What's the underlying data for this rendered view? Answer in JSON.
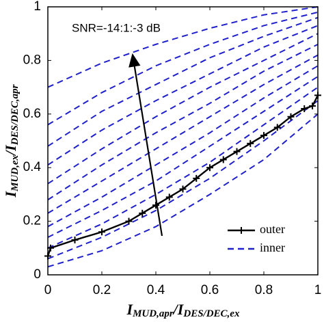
{
  "chart_data": {
    "type": "line",
    "annotation": "SNR=-14:1:-3 dB",
    "xlabel": [
      "I",
      "MUD,apr",
      "/I",
      "DES/DEC,ex"
    ],
    "ylabel": [
      "I",
      "MUD,ex",
      "/I",
      "DES/DEC,apr"
    ],
    "xlim": [
      0,
      1
    ],
    "ylim": [
      0,
      1
    ],
    "xticks": [
      0,
      0.2,
      0.4,
      0.6,
      0.8,
      1
    ],
    "yticks": [
      0,
      0.2,
      0.4,
      0.6,
      0.8,
      1
    ],
    "legend": "lower right",
    "series": [
      {
        "name": "outer",
        "color": "#000000",
        "style": "solid",
        "x": [
          0,
          0.01,
          0.1,
          0.2,
          0.3,
          0.35,
          0.4,
          0.45,
          0.5,
          0.55,
          0.6,
          0.65,
          0.7,
          0.75,
          0.8,
          0.85,
          0.9,
          0.95,
          0.98,
          1
        ],
        "values": [
          0.07,
          0.1,
          0.13,
          0.16,
          0.2,
          0.23,
          0.26,
          0.29,
          0.32,
          0.36,
          0.4,
          0.43,
          0.46,
          0.49,
          0.52,
          0.55,
          0.59,
          0.62,
          0.63,
          0.67
        ]
      },
      {
        "name": "inner",
        "color": "#1f1fcc",
        "style": "dashed",
        "x": [
          0,
          0.2,
          0.4,
          0.6,
          0.8,
          1
        ],
        "curves": [
          [
            0.03,
            0.09,
            0.18,
            0.3,
            0.43,
            0.6
          ],
          [
            0.06,
            0.14,
            0.24,
            0.36,
            0.5,
            0.65
          ],
          [
            0.1,
            0.19,
            0.3,
            0.42,
            0.56,
            0.7
          ],
          [
            0.14,
            0.24,
            0.35,
            0.48,
            0.61,
            0.74
          ],
          [
            0.18,
            0.29,
            0.41,
            0.53,
            0.66,
            0.78
          ],
          [
            0.23,
            0.35,
            0.47,
            0.59,
            0.71,
            0.82
          ],
          [
            0.28,
            0.41,
            0.53,
            0.64,
            0.76,
            0.86
          ],
          [
            0.34,
            0.47,
            0.59,
            0.7,
            0.8,
            0.9
          ],
          [
            0.41,
            0.54,
            0.65,
            0.75,
            0.85,
            0.93
          ],
          [
            0.48,
            0.61,
            0.71,
            0.81,
            0.89,
            0.96
          ],
          [
            0.56,
            0.68,
            0.78,
            0.86,
            0.93,
            0.98
          ],
          [
            0.7,
            0.79,
            0.86,
            0.92,
            0.97,
            1.0
          ]
        ]
      }
    ]
  }
}
